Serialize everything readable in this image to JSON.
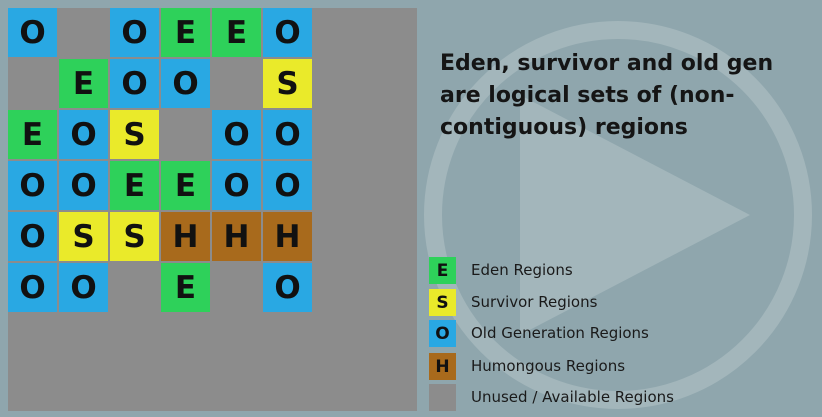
{
  "headline": "Eden, survivor and old gen are logical sets of (non-contiguous) regions",
  "colors": {
    "E": "#2ed15a",
    "S": "#eaea2a",
    "O": "#29a8e3",
    "H": "#a86a1c",
    "U": "#8c8c8c"
  },
  "grid": [
    [
      "O",
      "",
      "O",
      "E",
      "E",
      "O"
    ],
    [
      "",
      "E",
      "O",
      "O",
      "",
      "S"
    ],
    [
      "E",
      "O",
      "S",
      "",
      "O",
      "O"
    ],
    [
      "O",
      "O",
      "E",
      "E",
      "O",
      "O"
    ],
    [
      "O",
      "S",
      "S",
      "H",
      "H",
      "H"
    ],
    [
      "O",
      "O",
      "",
      "E",
      "",
      "O"
    ]
  ],
  "legend": [
    {
      "key": "E",
      "letter": "E",
      "label": "Eden Regions"
    },
    {
      "key": "S",
      "letter": "S",
      "label": "Survivor Regions"
    },
    {
      "key": "O",
      "letter": "O",
      "label": "Old Generation Regions"
    },
    {
      "key": "H",
      "letter": "H",
      "label": "Humongous Regions"
    },
    {
      "key": "U",
      "letter": "",
      "label": "Unused / Available Regions"
    }
  ]
}
